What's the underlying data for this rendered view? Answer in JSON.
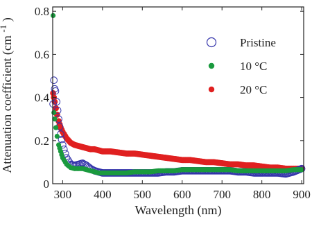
{
  "chart_data": {
    "type": "scatter",
    "title": "",
    "xlabel": "Wavelength (nm)",
    "ylabel": "Attenuation coefficient (cm",
    "ylabel_superscript": "-1",
    "ylabel_close": ")",
    "xlim": [
      275,
      905
    ],
    "ylim": [
      0,
      0.82
    ],
    "xticks": [
      300,
      400,
      500,
      600,
      700,
      800,
      900
    ],
    "yticks": [
      0,
      0.2,
      0.4,
      0.6,
      0.8
    ],
    "xtick_labels": [
      "300",
      "400",
      "500",
      "600",
      "700",
      "800",
      "900"
    ],
    "ytick_labels": [
      "0",
      "0.2",
      "0.4",
      "0.6",
      "0.8"
    ],
    "grid": false,
    "legend_position": "top-right",
    "series": [
      {
        "name": "Pristine",
        "marker": "open-circle",
        "color": "#3333aa",
        "x": [
          276,
          278,
          280,
          282,
          285,
          290,
          295,
          300,
          310,
          320,
          330,
          340,
          350,
          360,
          370,
          380,
          390,
          400,
          420,
          440,
          460,
          480,
          500,
          520,
          540,
          560,
          580,
          600,
          620,
          640,
          660,
          680,
          700,
          720,
          740,
          760,
          780,
          800,
          820,
          840,
          860,
          880,
          900
        ],
        "y": [
          0.37,
          0.48,
          0.44,
          0.43,
          0.38,
          0.3,
          0.23,
          0.18,
          0.12,
          0.09,
          0.085,
          0.09,
          0.095,
          0.085,
          0.07,
          0.06,
          0.055,
          0.05,
          0.05,
          0.05,
          0.05,
          0.05,
          0.05,
          0.05,
          0.05,
          0.055,
          0.055,
          0.06,
          0.06,
          0.06,
          0.06,
          0.06,
          0.06,
          0.06,
          0.055,
          0.055,
          0.05,
          0.05,
          0.05,
          0.05,
          0.045,
          0.055,
          0.07
        ]
      },
      {
        "name": "10 °C",
        "marker": "filled-circle",
        "color": "#1a9a3e",
        "x": [
          276,
          278,
          280,
          283,
          286,
          290,
          295,
          300,
          310,
          320,
          330,
          340,
          350,
          360,
          370,
          380,
          390,
          400,
          420,
          440,
          460,
          480,
          500,
          520,
          540,
          560,
          580,
          600,
          620,
          640,
          660,
          680,
          700,
          720,
          740,
          760,
          780,
          800,
          820,
          840,
          860,
          880,
          900
        ],
        "y": [
          0.78,
          0.33,
          0.3,
          0.26,
          0.22,
          0.18,
          0.15,
          0.12,
          0.09,
          0.075,
          0.07,
          0.07,
          0.07,
          0.065,
          0.06,
          0.055,
          0.05,
          0.05,
          0.05,
          0.05,
          0.05,
          0.055,
          0.055,
          0.055,
          0.06,
          0.06,
          0.06,
          0.065,
          0.065,
          0.065,
          0.065,
          0.065,
          0.065,
          0.065,
          0.06,
          0.06,
          0.06,
          0.06,
          0.06,
          0.06,
          0.06,
          0.065,
          0.065
        ]
      },
      {
        "name": "20  °C",
        "marker": "filled-circle",
        "color": "#e02020",
        "x": [
          276,
          278,
          280,
          283,
          286,
          290,
          295,
          300,
          310,
          320,
          330,
          340,
          350,
          360,
          370,
          380,
          390,
          400,
          420,
          440,
          460,
          480,
          500,
          520,
          540,
          560,
          580,
          600,
          620,
          640,
          660,
          680,
          700,
          720,
          740,
          760,
          780,
          800,
          820,
          840,
          860,
          880,
          900
        ],
        "y": [
          0.42,
          0.4,
          0.38,
          0.35,
          0.32,
          0.29,
          0.26,
          0.24,
          0.21,
          0.19,
          0.18,
          0.175,
          0.17,
          0.165,
          0.16,
          0.16,
          0.155,
          0.15,
          0.15,
          0.145,
          0.14,
          0.14,
          0.135,
          0.13,
          0.125,
          0.12,
          0.115,
          0.11,
          0.11,
          0.105,
          0.1,
          0.1,
          0.095,
          0.09,
          0.09,
          0.085,
          0.085,
          0.08,
          0.075,
          0.075,
          0.07,
          0.07,
          0.07
        ]
      }
    ]
  }
}
